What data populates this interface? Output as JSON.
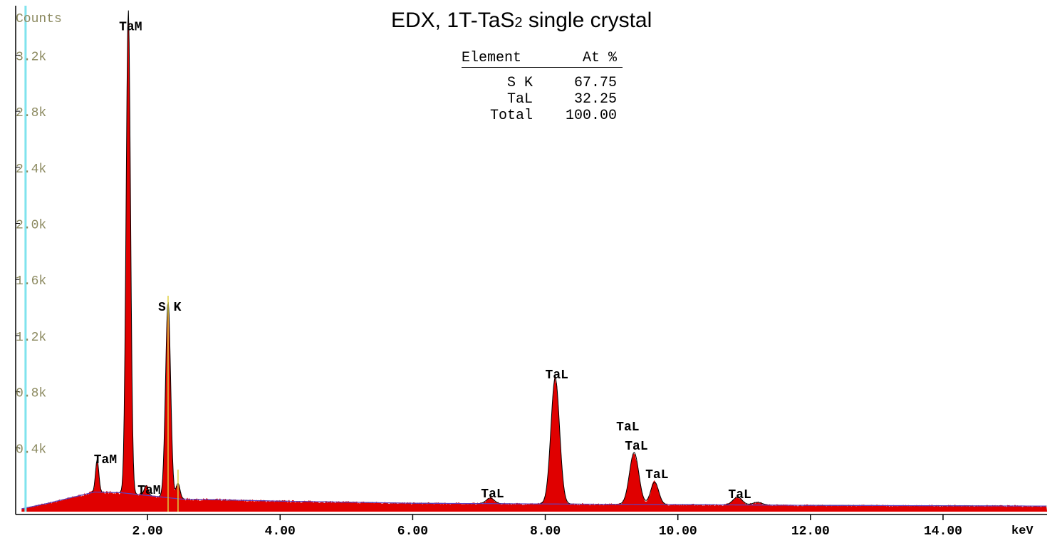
{
  "chart_data": {
    "type": "area",
    "title": "EDX, 1T-TaS",
    "title_subscript": "2",
    "title_suffix": " single crystal",
    "ylabel": "Counts",
    "xlabel": "keV",
    "xlim": [
      0.0,
      15.57
    ],
    "ylim": [
      0,
      3600
    ],
    "x_ticks": [
      2,
      4,
      6,
      8,
      10,
      12,
      14
    ],
    "x_tick_labels": [
      "2.00",
      "4.00",
      "6.00",
      "8.00",
      "10.00",
      "12.00",
      "14.00"
    ],
    "y_ticks": [
      400,
      800,
      1200,
      1600,
      2000,
      2400,
      2800,
      3200
    ],
    "y_tick_labels": [
      "0.4k",
      "0.8k",
      "1.2k",
      "1.6k",
      "2.0k",
      "2.4k",
      "2.8k",
      "3.2k"
    ],
    "background": {
      "x": [
        0.1,
        0.5,
        1.2,
        1.6,
        2.5,
        4.0,
        6.0,
        8.0,
        10.0,
        12.0,
        15.57
      ],
      "y": [
        20,
        60,
        140,
        135,
        90,
        75,
        60,
        55,
        50,
        45,
        40
      ]
    },
    "peaks": [
      {
        "energy": 1.24,
        "counts": 230,
        "sigma": 0.025
      },
      {
        "energy": 1.71,
        "counts": 3450,
        "sigma": 0.033
      },
      {
        "energy": 1.98,
        "counts": 70,
        "sigma": 0.03
      },
      {
        "energy": 2.31,
        "counts": 1400,
        "sigma": 0.038
      },
      {
        "energy": 2.46,
        "counts": 110,
        "sigma": 0.03
      },
      {
        "energy": 7.17,
        "counts": 40,
        "sigma": 0.06
      },
      {
        "energy": 8.15,
        "counts": 900,
        "sigma": 0.065
      },
      {
        "energy": 9.34,
        "counts": 370,
        "sigma": 0.07
      },
      {
        "energy": 9.65,
        "counts": 160,
        "sigma": 0.06
      },
      {
        "energy": 10.9,
        "counts": 55,
        "sigma": 0.07
      },
      {
        "energy": 11.2,
        "counts": 20,
        "sigma": 0.07
      }
    ],
    "marker_lines": [
      {
        "energy": 0.16,
        "color": "#7fe3ee"
      },
      {
        "energy": 2.31,
        "color": "#e0d040",
        "top": 1540
      },
      {
        "energy": 2.46,
        "color": "#e0d040",
        "top": 300
      }
    ],
    "annotations": [
      {
        "text": "TaM",
        "energy": 1.57,
        "counts": 3505
      },
      {
        "text": "S  K",
        "energy": 2.16,
        "counts": 1504
      },
      {
        "text": "TaM",
        "energy": 1.19,
        "counts": 417
      },
      {
        "text": "TaM",
        "energy": 1.85,
        "counts": 198
      },
      {
        "text": "TaL",
        "energy": 8.0,
        "counts": 1021
      },
      {
        "text": "TaL",
        "energy": 9.07,
        "counts": 650
      },
      {
        "text": "TaL",
        "energy": 9.2,
        "counts": 513
      },
      {
        "text": "TaL",
        "energy": 9.51,
        "counts": 310
      },
      {
        "text": "TaL",
        "energy": 7.03,
        "counts": 173
      },
      {
        "text": "TaL",
        "energy": 10.76,
        "counts": 168
      }
    ],
    "colors": {
      "spectrum": "#e00000",
      "fit": "#000000",
      "background": "#6040c0",
      "axis_text": "#8c8a60"
    }
  },
  "quant_table": {
    "headers": [
      "Element",
      "At %"
    ],
    "rows": [
      {
        "element": "S K",
        "value": "67.75"
      },
      {
        "element": "TaL",
        "value": "32.25"
      },
      {
        "element": "Total",
        "value": "100.00"
      }
    ]
  }
}
